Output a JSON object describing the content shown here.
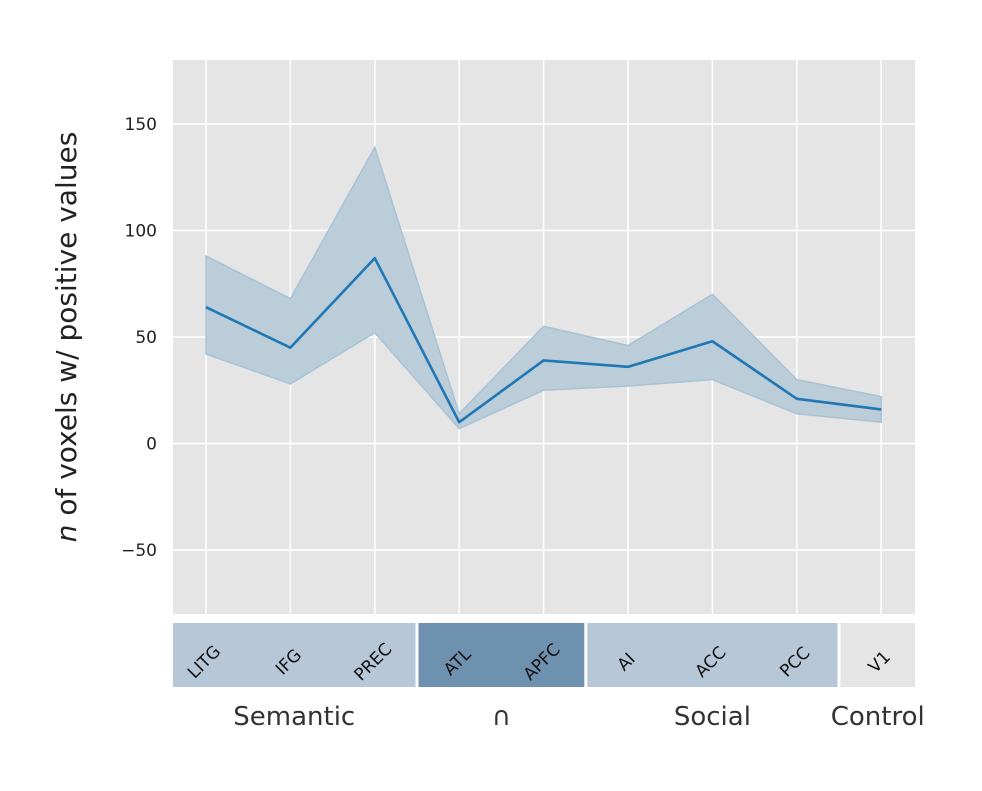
{
  "chart_data": {
    "type": "line",
    "ylabel_italic": "n",
    "ylabel_rest": " of voxels w/ positive values",
    "xlabel": "",
    "title": "",
    "ylim": [
      -80,
      180
    ],
    "yticks": [
      -50,
      0,
      50,
      100,
      150
    ],
    "ytick_labels": [
      "−50",
      "0",
      "50",
      "100",
      "150"
    ],
    "grid": true,
    "categories": [
      "LITG",
      "IFG",
      "PREC",
      "ATL",
      "APFC",
      "AI",
      "ACC",
      "PCC",
      "V1"
    ],
    "series": [
      {
        "values": [
          64,
          45,
          87,
          10,
          39,
          36,
          48,
          21,
          16
        ],
        "ci_low": [
          42,
          28,
          52,
          7,
          25,
          27,
          30,
          14,
          10
        ],
        "ci_high": [
          88,
          68,
          139,
          14,
          55,
          46,
          70,
          30,
          22
        ],
        "color": "#1f77b4"
      }
    ],
    "region_groups": [
      {
        "label": "Semantic",
        "members": [
          "LITG",
          "IFG",
          "PREC"
        ],
        "color": "#b6c7d8"
      },
      {
        "label": "∩",
        "members": [
          "ATL",
          "APFC"
        ],
        "color": "#6f91b0"
      },
      {
        "label": "Social",
        "members": [
          "AI",
          "ACC",
          "PCC"
        ],
        "color": "#b6c7d8"
      },
      {
        "label": "Control",
        "members": [
          "V1"
        ],
        "color": "#e5e5e5"
      }
    ],
    "colors": {
      "plot_background": "#e5e5e5",
      "grid": "#ffffff",
      "line": "#1f77b4",
      "band": "#bccdda",
      "control_label": "#e4e4e4",
      "group_label": "#333333"
    }
  }
}
